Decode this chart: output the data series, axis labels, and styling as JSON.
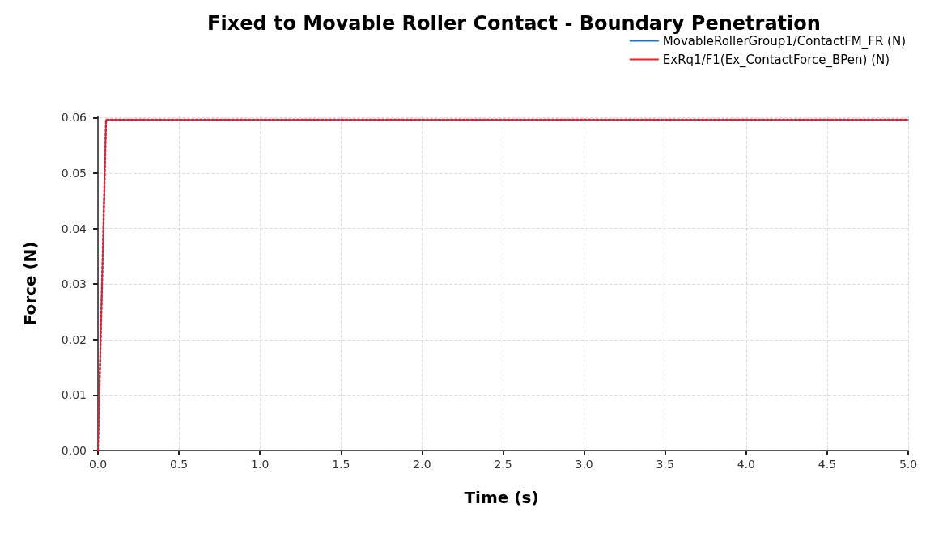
{
  "chart_data": {
    "type": "line",
    "title": "Fixed to Movable Roller Contact - Boundary Penetration",
    "xlabel": "Time (s)",
    "ylabel": "Force (N)",
    "x": [
      0,
      0.05,
      5.0
    ],
    "series": [
      {
        "name": "MovableRollerGroup1/ContactFM_FR (N)",
        "color": "#1f72c4",
        "values": [
          0,
          0.0596,
          0.0596
        ],
        "line_style": "solid"
      },
      {
        "name": "ExRq1/F1(Ex_ContactForce_BPen) (N)",
        "color": "#e8202a",
        "values": [
          0,
          0.0596,
          0.0596
        ],
        "line_style": "dotted"
      }
    ],
    "xlim": [
      -0.02,
      5.0
    ],
    "xticks": [
      {
        "value": 0,
        "label": "0.0"
      },
      0.5,
      {
        "value": 1,
        "label": "1.0"
      },
      1.5,
      {
        "value": 2,
        "label": "2.0"
      },
      2.5,
      {
        "value": 3,
        "label": "3.0"
      },
      3.5,
      {
        "value": 4,
        "label": "4.0"
      },
      4.5,
      {
        "value": 5,
        "label": "5.0"
      }
    ],
    "ylim": [
      0,
      0.0602
    ],
    "yticks": [
      {
        "value": 0,
        "label": "0.00"
      },
      0.01,
      0.02,
      0.03,
      0.04,
      0.05,
      0.06
    ],
    "grid": true,
    "legend": "top right",
    "marker": "none"
  }
}
